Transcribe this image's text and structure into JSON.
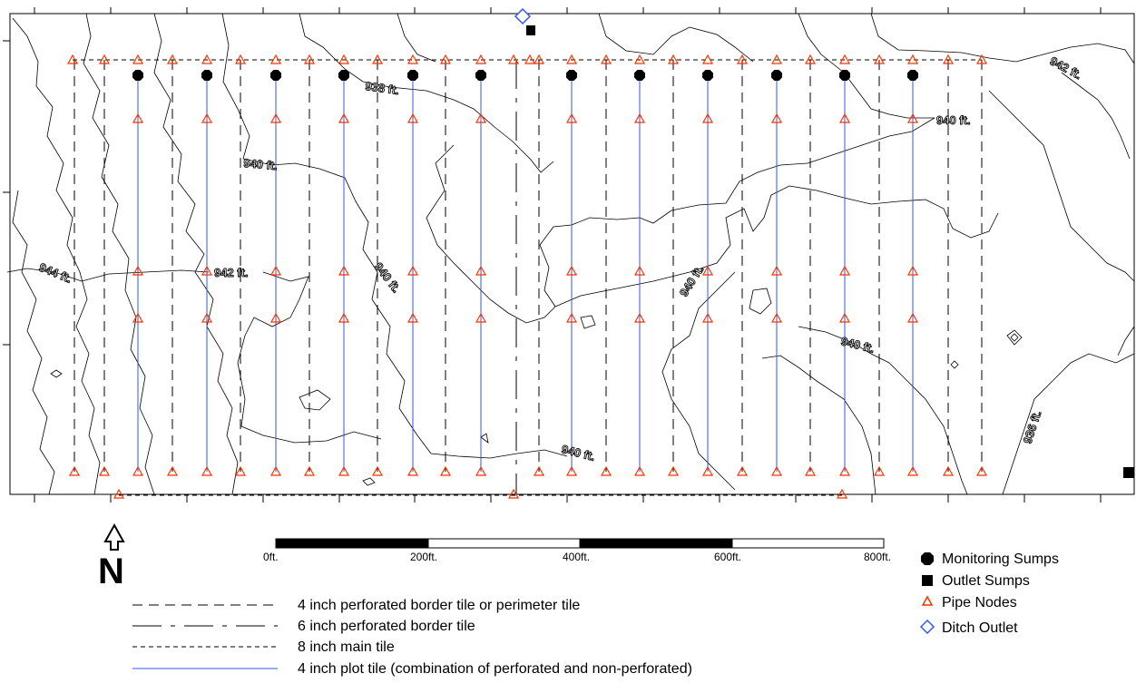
{
  "contour_labels": [
    {
      "text": "942 ft."
    },
    {
      "text": "938 ft."
    },
    {
      "text": "940 ft."
    },
    {
      "text": "940 ft."
    },
    {
      "text": "944 ft."
    },
    {
      "text": "942 ft."
    },
    {
      "text": "940 ft."
    },
    {
      "text": "940 ft."
    },
    {
      "text": "940 ft."
    },
    {
      "text": "936 ft."
    },
    {
      "text": "940 ft."
    }
  ],
  "scale_bar": {
    "ticks": [
      "0ft.",
      "200ft.",
      "400ft.",
      "600ft.",
      "800ft."
    ]
  },
  "north_arrow": {
    "letter": "N"
  },
  "line_legend": [
    {
      "label": "4 inch perforated border tile or perimeter tile",
      "style": "long-dash",
      "color": "#000000"
    },
    {
      "label": "6 inch perforated border tile",
      "style": "dash-dot",
      "color": "#000000"
    },
    {
      "label": "8 inch main tile",
      "style": "short-dash",
      "color": "#000000"
    },
    {
      "label": "4 inch plot tile (combination of perforated and non-perforated)",
      "style": "solid",
      "color": "#3355ee"
    }
  ],
  "symbol_legend": [
    {
      "label": "Monitoring Sumps",
      "icon": "filled-octagon",
      "color": "#000000"
    },
    {
      "label": "Outlet Sumps",
      "icon": "filled-square",
      "color": "#000000"
    },
    {
      "label": "Pipe Nodes",
      "icon": "triangle",
      "color": "#ff3300"
    },
    {
      "label": "Ditch Outlet",
      "icon": "diamond",
      "color": "#3355ee"
    }
  ],
  "colors": {
    "plot_tile": "#3355ee",
    "pipe_node": "#ff3300",
    "ditch_outlet": "#3355ee"
  }
}
